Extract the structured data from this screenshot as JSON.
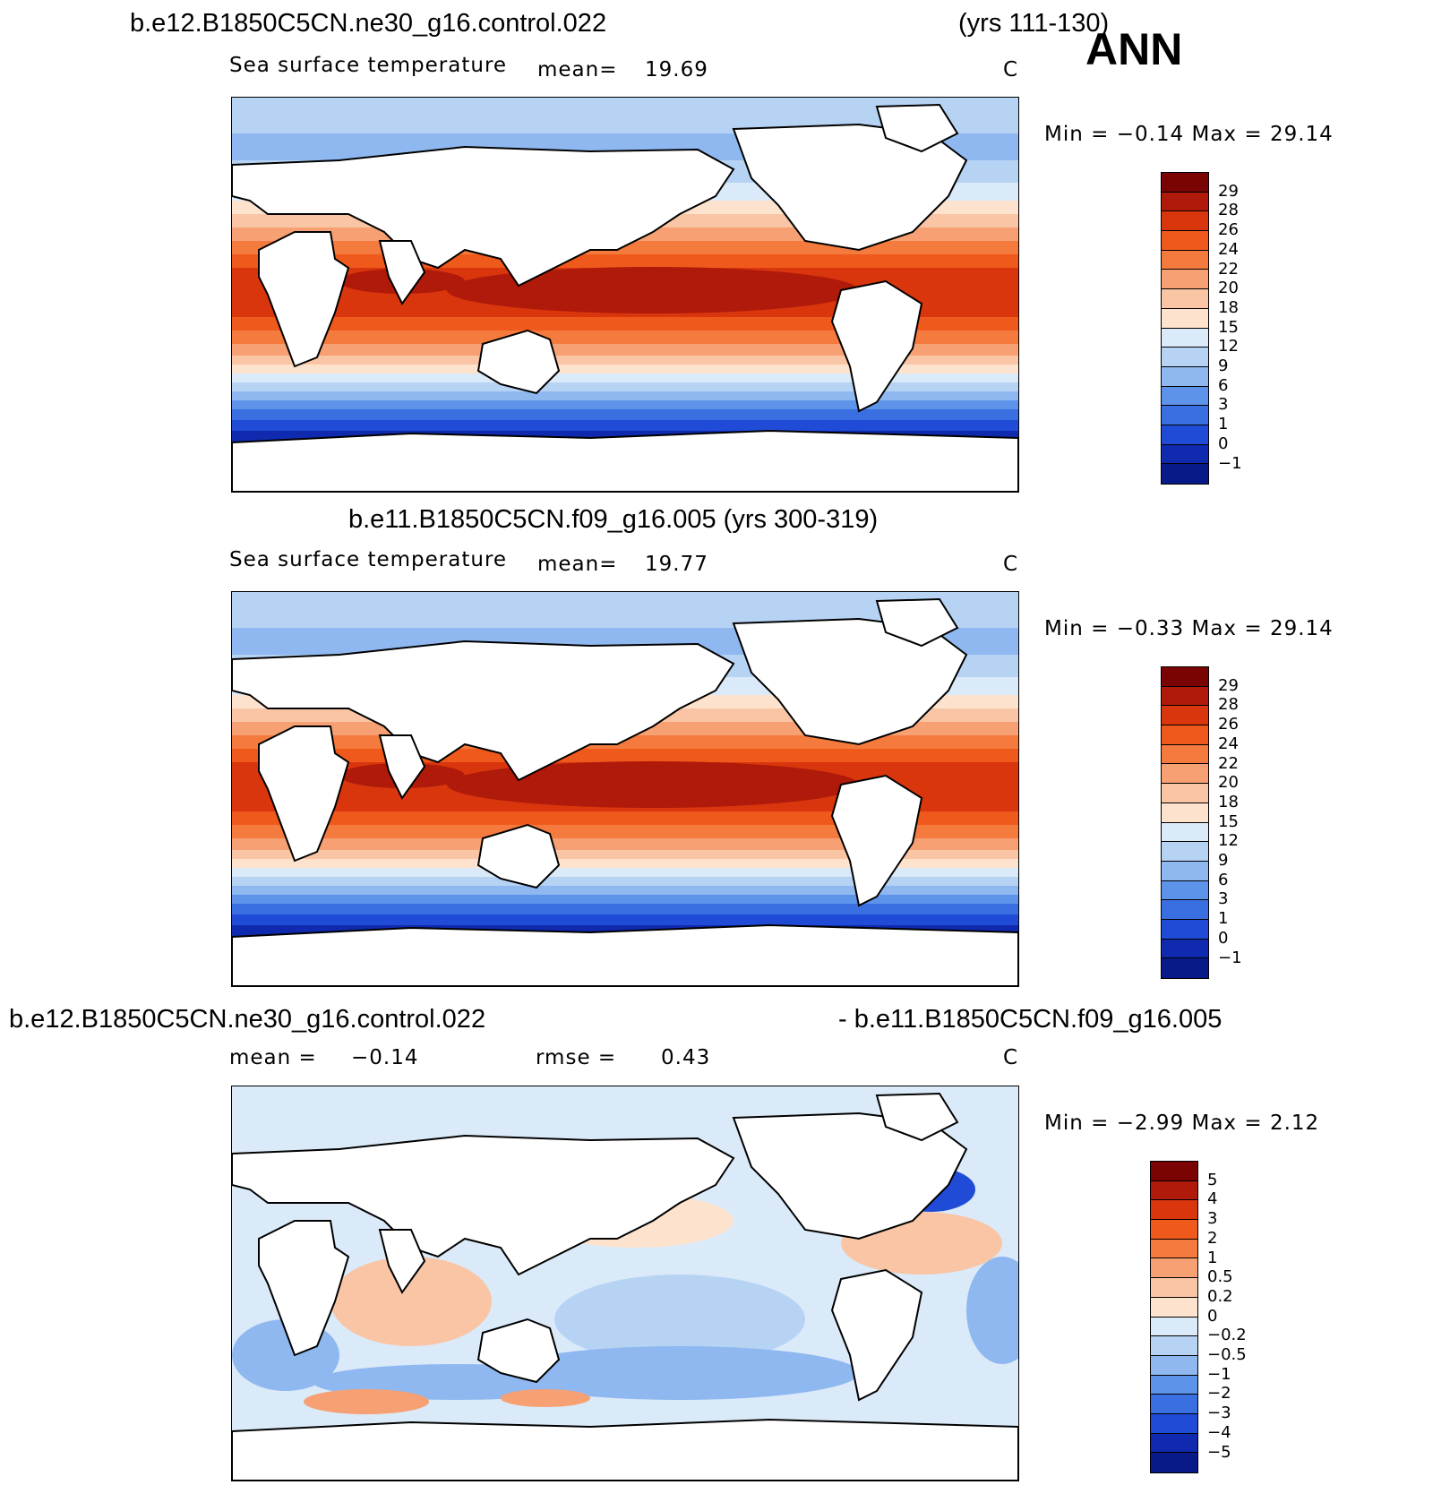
{
  "season": "ANN",
  "panels": [
    {
      "title_left": "b.e12.B1850C5CN.ne30_g16.control.022",
      "title_right": "(yrs 111-130)",
      "variable": "Sea surface temperature",
      "stat_label": "mean=",
      "stat_value": "19.69",
      "units": "C",
      "minmax": "Min =   −0.14 Max =   29.14",
      "colorbar": {
        "ticks": [
          "29",
          "28",
          "26",
          "24",
          "22",
          "20",
          "18",
          "15",
          "12",
          "9",
          "6",
          "3",
          "1",
          "0",
          "−1"
        ],
        "colors": [
          "#7a0403",
          "#b01a0a",
          "#d9360e",
          "#ef5a1c",
          "#f47b3d",
          "#f7a073",
          "#f9c5a5",
          "#fde3cd",
          "#dbeaf8",
          "#b7d3f4",
          "#8fb8f0",
          "#5e93ea",
          "#3a6fe2",
          "#1f4bd6",
          "#0f2aae",
          "#071a88"
        ]
      },
      "chart_data": {
        "type": "heatmap",
        "map": "global SST climatology",
        "mean": 19.69,
        "min": -0.14,
        "max": 29.14,
        "units": "C",
        "levels": [
          -1,
          0,
          1,
          3,
          6,
          9,
          12,
          15,
          18,
          20,
          22,
          24,
          26,
          28,
          29
        ]
      }
    },
    {
      "title_left": "b.e11.B1850C5CN.f09_g16.005 (yrs 300-319)",
      "title_right": "",
      "variable": "Sea surface temperature",
      "stat_label": "mean=",
      "stat_value": "19.77",
      "units": "C",
      "minmax": "Min =   −0.33 Max =   29.14",
      "colorbar": {
        "ticks": [
          "29",
          "28",
          "26",
          "24",
          "22",
          "20",
          "18",
          "15",
          "12",
          "9",
          "6",
          "3",
          "1",
          "0",
          "−1"
        ],
        "colors": [
          "#7a0403",
          "#b01a0a",
          "#d9360e",
          "#ef5a1c",
          "#f47b3d",
          "#f7a073",
          "#f9c5a5",
          "#fde3cd",
          "#dbeaf8",
          "#b7d3f4",
          "#8fb8f0",
          "#5e93ea",
          "#3a6fe2",
          "#1f4bd6",
          "#0f2aae",
          "#071a88"
        ]
      },
      "chart_data": {
        "type": "heatmap",
        "map": "global SST climatology",
        "mean": 19.77,
        "min": -0.33,
        "max": 29.14,
        "units": "C",
        "levels": [
          -1,
          0,
          1,
          3,
          6,
          9,
          12,
          15,
          18,
          20,
          22,
          24,
          26,
          28,
          29
        ]
      }
    },
    {
      "title_left": "b.e12.B1850C5CN.ne30_g16.control.022",
      "title_right": "- b.e11.B1850C5CN.f09_g16.005",
      "mean_label": "mean =",
      "mean_value": "−0.14",
      "rmse_label": "rmse =",
      "rmse_value": "0.43",
      "units": "C",
      "minmax": "Min =   −2.99 Max =    2.12",
      "colorbar": {
        "ticks": [
          "5",
          "4",
          "3",
          "2",
          "1",
          "0.5",
          "0.2",
          "0",
          "−0.2",
          "−0.5",
          "−1",
          "−2",
          "−3",
          "−4",
          "−5"
        ],
        "colors": [
          "#7a0403",
          "#b01a0a",
          "#d9360e",
          "#ef5a1c",
          "#f47b3d",
          "#f7a073",
          "#f9c5a5",
          "#fde3cd",
          "#dbeaf8",
          "#b7d3f4",
          "#8fb8f0",
          "#5e93ea",
          "#3a6fe2",
          "#1f4bd6",
          "#0f2aae",
          "#071a88"
        ]
      },
      "chart_data": {
        "type": "heatmap",
        "map": "global SST difference",
        "mean": -0.14,
        "rmse": 0.43,
        "min": -2.99,
        "max": 2.12,
        "units": "C",
        "levels": [
          -5,
          -4,
          -3,
          -2,
          -1,
          -0.5,
          -0.2,
          0,
          0.2,
          0.5,
          1,
          2,
          3,
          4,
          5
        ]
      }
    }
  ]
}
